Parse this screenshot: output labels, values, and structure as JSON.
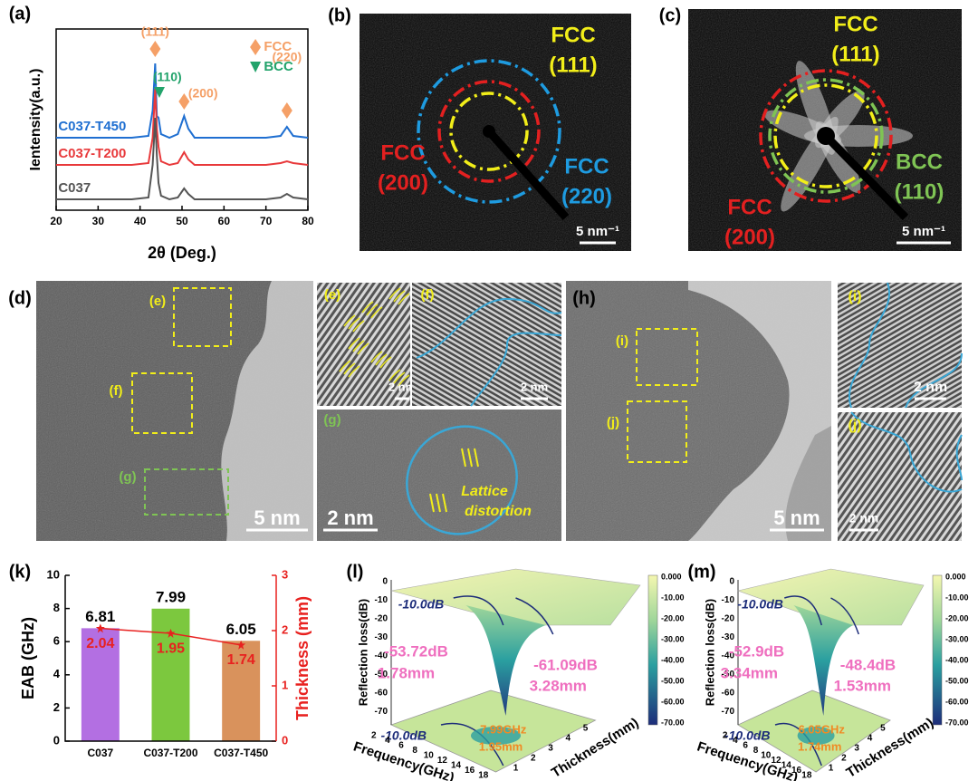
{
  "chart_data": [
    {
      "type": "line",
      "label": "(a)",
      "xlabel": "2θ (Deg.)",
      "ylabel": "Ientensity(a.u.)",
      "x": [
        20,
        30,
        38,
        42,
        43,
        43.6,
        44,
        44.4,
        45,
        47,
        49,
        50.5,
        51.5,
        53,
        60,
        70,
        73.5,
        75,
        76.5,
        80
      ],
      "series": [
        {
          "name": "C037-T450",
          "color": "#1f6fd1",
          "values": [
            40,
            40,
            40,
            41,
            55,
            81,
            52,
            51,
            42,
            40,
            42,
            52,
            45,
            40,
            40,
            40,
            41,
            46,
            41,
            40
          ]
        },
        {
          "name": "C037-T200",
          "color": "#e8393b",
          "values": [
            25,
            25,
            25,
            26,
            40,
            67,
            45,
            35,
            27,
            25,
            26,
            32,
            28,
            25,
            25,
            25,
            26,
            27,
            26,
            25
          ]
        },
        {
          "name": "C037",
          "color": "#555555",
          "values": [
            6,
            6,
            6,
            7,
            25,
            51,
            30,
            15,
            8,
            6,
            7,
            12,
            9,
            6,
            6,
            6,
            7,
            9,
            7,
            6
          ]
        }
      ],
      "xlim": [
        20,
        80
      ],
      "xticks": [
        20,
        30,
        40,
        50,
        60,
        70,
        80
      ],
      "ylim": [
        0,
        100
      ],
      "annotations": [
        "(111)",
        "(110)",
        "(200)",
        "(220)"
      ],
      "legend": [
        {
          "name": "FCC",
          "color": "#f5a067"
        },
        {
          "name": "BCC",
          "color": "#22a36b"
        }
      ]
    },
    {
      "type": "bar",
      "label": "(k)",
      "categories": [
        "C037",
        "C037-T200",
        "C037-T450"
      ],
      "ylabel": "EAB (GHz)",
      "y2label": "Thickness (mm)",
      "series": [
        {
          "values": [
            6.81,
            7.99,
            6.05
          ],
          "colors": [
            "#b36fe2",
            "#7cc83e",
            "#d9925c"
          ]
        },
        {
          "axis": "y2",
          "color": "#e8211f",
          "values": [
            2.04,
            1.95,
            1.74
          ]
        }
      ],
      "ylim": [
        0,
        10
      ],
      "yticks": [
        0,
        2,
        4,
        6,
        8,
        10
      ],
      "y2lim": [
        0,
        3
      ],
      "y2ticks": [
        0,
        1,
        2,
        3
      ]
    }
  ],
  "panels": {
    "b": {
      "label": "(b)",
      "rings": [
        {
          "phase": "FCC",
          "plane": "(111)"
        },
        {
          "phase": "FCC",
          "plane": "(200)"
        },
        {
          "phase": "FCC",
          "plane": "(220)"
        }
      ],
      "scale": "5 nm⁻¹"
    },
    "c": {
      "label": "(c)",
      "rings": [
        {
          "phase": "FCC",
          "plane": "(111)"
        },
        {
          "phase": "BCC",
          "plane": "(110)"
        },
        {
          "phase": "FCC",
          "plane": "(200)"
        }
      ],
      "scale": "5 nm⁻¹"
    },
    "d": {
      "label": "(d)",
      "boxes": [
        "(e)",
        "(f)",
        "(g)"
      ],
      "scale": "5 nm"
    },
    "e": {
      "label": "(e)",
      "scale": "2 nm"
    },
    "f": {
      "label": "(f)",
      "scale": "2 nm"
    },
    "g": {
      "label": "(g)",
      "scale": "2 nm",
      "note": [
        "Lattice",
        "distortion"
      ]
    },
    "h": {
      "label": "(h)",
      "boxes": [
        "(i)",
        "(j)"
      ],
      "scale": "5 nm"
    },
    "i": {
      "label": "(i)",
      "scale": "2 nm"
    },
    "j": {
      "label": "(j)",
      "scale": "2 nm"
    },
    "l": {
      "label": "(l)",
      "zlabel": "Reflection loss(dB)",
      "zticks": [
        "0",
        "-10",
        "-20",
        "-30",
        "-40",
        "-50",
        "-60",
        "-70"
      ],
      "contour": "-10.0dB",
      "notes": [
        "-53.72dB",
        "1.78mm",
        "-61.09dB",
        "3.28mm"
      ],
      "peak": [
        "7.99GHz",
        "1.95mm"
      ],
      "xlabel": "Frequency(GHz)",
      "xticks": [
        "2",
        "4",
        "6",
        "8",
        "10",
        "12",
        "14",
        "16",
        "18"
      ],
      "ylabel": "Thickness(mm)",
      "yticks": [
        "1",
        "2",
        "3",
        "4",
        "5"
      ],
      "cbticks": [
        "0.000",
        "-10.00",
        "-20.00",
        "-30.00",
        "-40.00",
        "-50.00",
        "-60.00",
        "-70.00"
      ]
    },
    "m": {
      "label": "(m)",
      "zlabel": "Reflection loss(dB)",
      "zticks": [
        "0",
        "-10",
        "-20",
        "-30",
        "-40",
        "-50",
        "-60",
        "-70"
      ],
      "contour": "-10.0dB",
      "notes": [
        "-52.9dB",
        "3.34mm",
        "-48.4dB",
        "1.53mm"
      ],
      "peak": [
        "6.05GHz",
        "1.74mm"
      ],
      "xlabel": "Frequency(GHz)",
      "xticks": [
        "2",
        "4",
        "6",
        "8",
        "10",
        "12",
        "14",
        "16",
        "18"
      ],
      "ylabel": "Thickness(mm)",
      "yticks": [
        "1",
        "2",
        "3",
        "4",
        "5"
      ],
      "cbticks": [
        "0.000",
        "-10.00",
        "-20.00",
        "-30.00",
        "-40.00",
        "-50.00",
        "-60.00",
        "-70.00"
      ]
    }
  }
}
